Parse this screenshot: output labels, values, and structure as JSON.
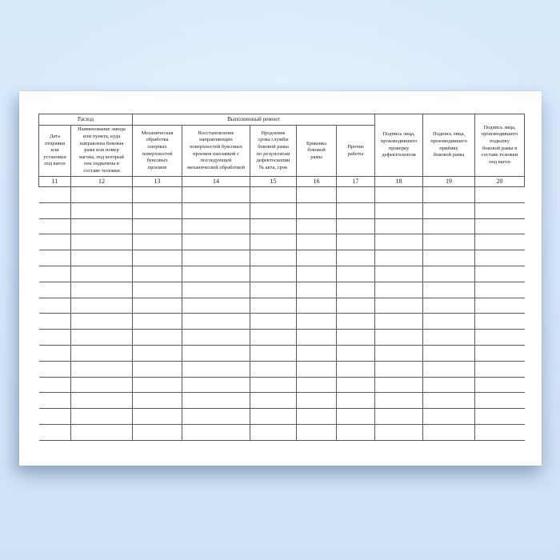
{
  "table": {
    "group_headers": [
      {
        "label": "Расход"
      },
      {
        "label": "Выполненный ремонт"
      }
    ],
    "columns": [
      {
        "number": "11",
        "header": "Дата\nотправки\nили\nустановки\nпод вагон"
      },
      {
        "number": "12",
        "header": "Наименование завода\nили пункта, куда\nнаправлена боковая\nрама или номер\nвагона, под который\nона подкачена в\nсоставе тележки"
      },
      {
        "number": "13",
        "header": "Механическая\nобработка\nопорных\nповерхностей\nбуксовых\nпроемов"
      },
      {
        "number": "14",
        "header": "Восстановление\nнаправляющих\nповерхностей буксовых\nпроемов наплавкой с\nпоследующей\nмеханической обработкой"
      },
      {
        "number": "15",
        "header": "Продление\nсрока службы\nбоковой рамы\nпо результатам\nдефектоскопии\n№ акта, срок"
      },
      {
        "number": "16",
        "header": "Браковка\nбоковой\nрамы"
      },
      {
        "number": "17",
        "header": "Прочие\nработы"
      },
      {
        "number": "18",
        "header": "Подпись лица,\nпроизводившего\nпроверку\nдефектоскопом"
      },
      {
        "number": "19",
        "header": "Подпись лица,\nпроизводившего\nприёмку\nбоковой рамы"
      },
      {
        "number": "20",
        "header": "Подпись лица,\nпроизводившего\nподкатку\nбоковой рамы в\nсоставе тележки\nпод вагон"
      }
    ],
    "body_row_count": 16
  },
  "colors": {
    "background_top": "#d8ebfd",
    "background_bottom": "#cfe1f5",
    "paper": "#ffffff",
    "grid_line": "#5a5a5a",
    "text": "#1d1d1d"
  }
}
